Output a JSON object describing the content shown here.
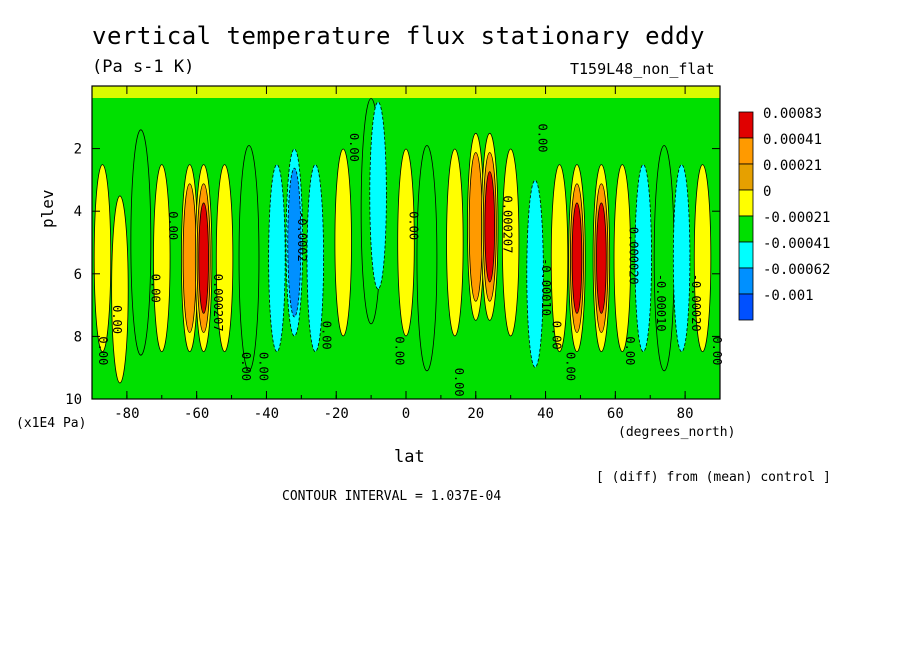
{
  "chart_data": {
    "type": "heatmap",
    "title": "vertical temperature flux stationary eddy",
    "units": "(Pa s-1 K)",
    "run_label": "T159L48_non_flat",
    "xlabel": "lat",
    "x_unit": "(degrees_north)",
    "ylabel": "plev",
    "y_unit": "(x1E4 Pa)",
    "footnote": "[ (diff) from (mean) control ]",
    "contour_interval": "CONTOUR INTERVAL = 1.037E-04",
    "xlim": [
      -90,
      90
    ],
    "ylim": [
      10,
      0
    ],
    "x_ticks": [
      "-80",
      "-60",
      "-40",
      "-20",
      "0",
      "20",
      "40",
      "60",
      "80"
    ],
    "y_ticks": [
      "2",
      "4",
      "6",
      "8",
      "10"
    ],
    "legend": {
      "labels": [
        "0.00083",
        "0.00041",
        "0.00021",
        "0",
        "-0.00021",
        "-0.00041",
        "-0.00062",
        "-0.001"
      ],
      "colors": [
        "#e00000",
        "#ff9a00",
        "#e6a000",
        "#ffff00",
        "#00e000",
        "#00ffff",
        "#0090ff",
        "#0050ff"
      ]
    },
    "band_colors": [
      "#0050ff",
      "#0090ff",
      "#00ffff",
      "#00e000",
      "#ffff00",
      "#ff9a00",
      "#e00000"
    ],
    "cells": [
      {
        "lat": -87,
        "p": 5.5,
        "band": 4
      },
      {
        "lat": -82,
        "p": 6.5,
        "band": 4
      },
      {
        "lat": -76,
        "p": 5.0,
        "band": 3
      },
      {
        "lat": -70,
        "p": 5.5,
        "band": 4
      },
      {
        "lat": -62,
        "p": 5.5,
        "band": 5
      },
      {
        "lat": -58,
        "p": 5.5,
        "band": 6
      },
      {
        "lat": -52,
        "p": 5.5,
        "band": 4
      },
      {
        "lat": -45,
        "p": 5.5,
        "band": 3
      },
      {
        "lat": -37,
        "p": 5.5,
        "band": 2
      },
      {
        "lat": -32,
        "p": 5.0,
        "band": 1
      },
      {
        "lat": -26,
        "p": 5.5,
        "band": 2
      },
      {
        "lat": -18,
        "p": 5.0,
        "band": 4
      },
      {
        "lat": -10,
        "p": 4.0,
        "band": 3
      },
      {
        "lat": -8,
        "p": 3.5,
        "band": 2
      },
      {
        "lat": 0,
        "p": 5.0,
        "band": 4
      },
      {
        "lat": 6,
        "p": 5.5,
        "band": 3
      },
      {
        "lat": 14,
        "p": 5.0,
        "band": 4
      },
      {
        "lat": 20,
        "p": 4.5,
        "band": 5
      },
      {
        "lat": 24,
        "p": 4.5,
        "band": 6
      },
      {
        "lat": 30,
        "p": 5.0,
        "band": 4
      },
      {
        "lat": 37,
        "p": 6.0,
        "band": 2
      },
      {
        "lat": 44,
        "p": 5.5,
        "band": 4
      },
      {
        "lat": 49,
        "p": 5.5,
        "band": 6
      },
      {
        "lat": 56,
        "p": 5.5,
        "band": 6
      },
      {
        "lat": 62,
        "p": 5.5,
        "band": 4
      },
      {
        "lat": 68,
        "p": 5.5,
        "band": 2
      },
      {
        "lat": 74,
        "p": 5.5,
        "band": 3
      },
      {
        "lat": 79,
        "p": 5.5,
        "band": 2
      },
      {
        "lat": 85,
        "p": 5.5,
        "band": 4
      }
    ],
    "contour_labels": [
      {
        "text": "0.00",
        "lat": -68,
        "p": 4.0
      },
      {
        "text": "0.00",
        "lat": -73,
        "p": 6.0
      },
      {
        "text": "0.00",
        "lat": -84,
        "p": 7.0
      },
      {
        "text": "0.00",
        "lat": -88,
        "p": 8.0
      },
      {
        "text": "0.000207",
        "lat": -55,
        "p": 6.0
      },
      {
        "text": "0.00",
        "lat": -47,
        "p": 8.5
      },
      {
        "text": "0.00",
        "lat": -42,
        "p": 8.5
      },
      {
        "text": "-0.0002",
        "lat": -31,
        "p": 4.0
      },
      {
        "text": "0.00",
        "lat": -24,
        "p": 7.5
      },
      {
        "text": "0.00",
        "lat": -16,
        "p": 1.5
      },
      {
        "text": "0.00",
        "lat": 1,
        "p": 4.0
      },
      {
        "text": "0.00",
        "lat": -3,
        "p": 8.0
      },
      {
        "text": "0.00",
        "lat": 14,
        "p": 9.0
      },
      {
        "text": "0.000207",
        "lat": 28,
        "p": 3.5
      },
      {
        "text": "-0.00010",
        "lat": 39,
        "p": 5.5
      },
      {
        "text": "0.00",
        "lat": 42,
        "p": 7.5
      },
      {
        "text": "0.00",
        "lat": 46,
        "p": 8.5
      },
      {
        "text": "0.00",
        "lat": 38,
        "p": 1.2
      },
      {
        "text": "0.000020",
        "lat": 64,
        "p": 4.5
      },
      {
        "text": "-0.00010",
        "lat": 72,
        "p": 6.0
      },
      {
        "text": "0.00",
        "lat": 63,
        "p": 8.0
      },
      {
        "text": "-0.00020",
        "lat": 82,
        "p": 6.0
      },
      {
        "text": "0.00",
        "lat": 88,
        "p": 8.0
      }
    ]
  }
}
